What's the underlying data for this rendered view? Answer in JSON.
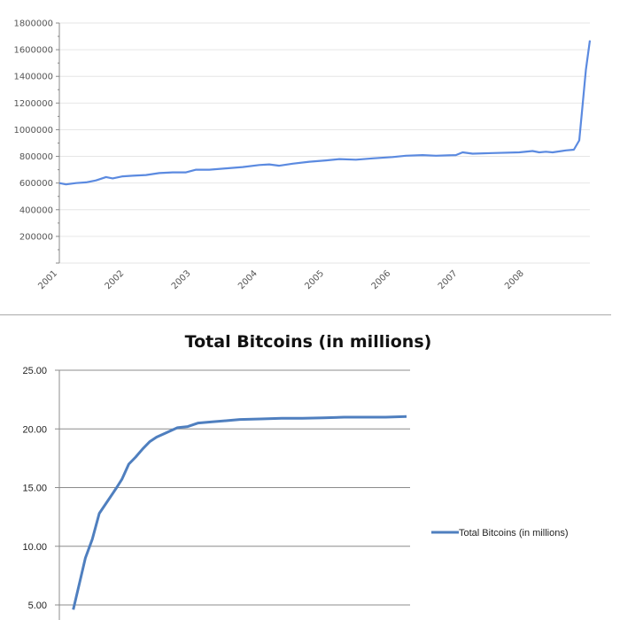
{
  "chart_data": [
    {
      "type": "line",
      "title": "",
      "xlabel": "",
      "ylabel": "",
      "colors": {
        "line": "#5b8ae0",
        "grid": "#e6e6e6",
        "axis": "#888888"
      },
      "ylim": [
        0,
        1800000
      ],
      "yticks": [
        200000,
        400000,
        600000,
        800000,
        1000000,
        1200000,
        1400000,
        1600000,
        1800000
      ],
      "ytick_labels": [
        "200000",
        "400000",
        "600000",
        "800000",
        "1000000",
        "1200000",
        "1400000",
        "1600000",
        "1800000"
      ],
      "xlim": [
        2001,
        2008.96
      ],
      "xticks": [
        2001,
        2002,
        2003,
        2004,
        2005,
        2006,
        2007,
        2008
      ],
      "xtick_labels": [
        "2001",
        "2002",
        "2003",
        "2004",
        "2005",
        "2006",
        "2007",
        "2008"
      ],
      "grid": true,
      "legend": null,
      "series": [
        {
          "name": "",
          "x": [
            2001.0,
            2001.1,
            2001.25,
            2001.4,
            2001.55,
            2001.7,
            2001.8,
            2001.95,
            2002.1,
            2002.3,
            2002.5,
            2002.7,
            2002.9,
            2003.05,
            2003.25,
            2003.5,
            2003.75,
            2004.0,
            2004.15,
            2004.3,
            2004.5,
            2004.75,
            2005.0,
            2005.2,
            2005.45,
            2005.7,
            2006.0,
            2006.2,
            2006.45,
            2006.65,
            2006.95,
            2007.05,
            2007.2,
            2007.5,
            2007.9,
            2008.1,
            2008.2,
            2008.3,
            2008.4,
            2008.6,
            2008.72,
            2008.8,
            2008.85,
            2008.9,
            2008.96
          ],
          "y": [
            600000,
            590000,
            600000,
            605000,
            620000,
            645000,
            635000,
            650000,
            655000,
            660000,
            675000,
            680000,
            680000,
            700000,
            700000,
            710000,
            720000,
            735000,
            740000,
            730000,
            745000,
            760000,
            770000,
            780000,
            775000,
            785000,
            795000,
            805000,
            810000,
            805000,
            810000,
            830000,
            820000,
            825000,
            830000,
            840000,
            830000,
            835000,
            830000,
            845000,
            850000,
            920000,
            1180000,
            1450000,
            1670000
          ]
        }
      ]
    },
    {
      "type": "line",
      "title": "Total Bitcoins (in millions)",
      "xlabel": "",
      "ylabel": "",
      "colors": {
        "line": "#4f7fbf",
        "grid": "#8c8c8c",
        "axis": "#8c8c8c"
      },
      "ylim": [
        5,
        25
      ],
      "yticks": [
        5,
        10,
        15,
        20,
        25
      ],
      "ytick_labels": [
        "5.00",
        "10.00",
        "15.00",
        "20.00",
        "25.00"
      ],
      "xlim": [
        0,
        100
      ],
      "grid": true,
      "legend": {
        "position": "right",
        "entries": [
          "Total Bitcoins (in millions)"
        ]
      },
      "series": [
        {
          "name": "Total Bitcoins (in millions)",
          "x": [
            8,
            12,
            15,
            19,
            23,
            28,
            33,
            36,
            40,
            44,
            48,
            52,
            56,
            62,
            68,
            74,
            80,
            88,
            96,
            104
          ],
          "y": [
            4.6,
            7.1,
            9.0,
            10.6,
            12.8,
            13.9,
            15.0,
            15.7,
            17.0,
            17.6,
            18.3,
            18.9,
            19.3,
            19.7,
            20.1,
            20.2,
            20.5,
            20.6,
            20.7,
            20.8
          ],
          "x_end": [
            104,
            116,
            128,
            140,
            152,
            164,
            176,
            188,
            200
          ],
          "y_end": [
            20.8,
            20.85,
            20.9,
            20.9,
            20.95,
            21.0,
            21.0,
            21.0,
            21.05
          ]
        }
      ]
    }
  ]
}
